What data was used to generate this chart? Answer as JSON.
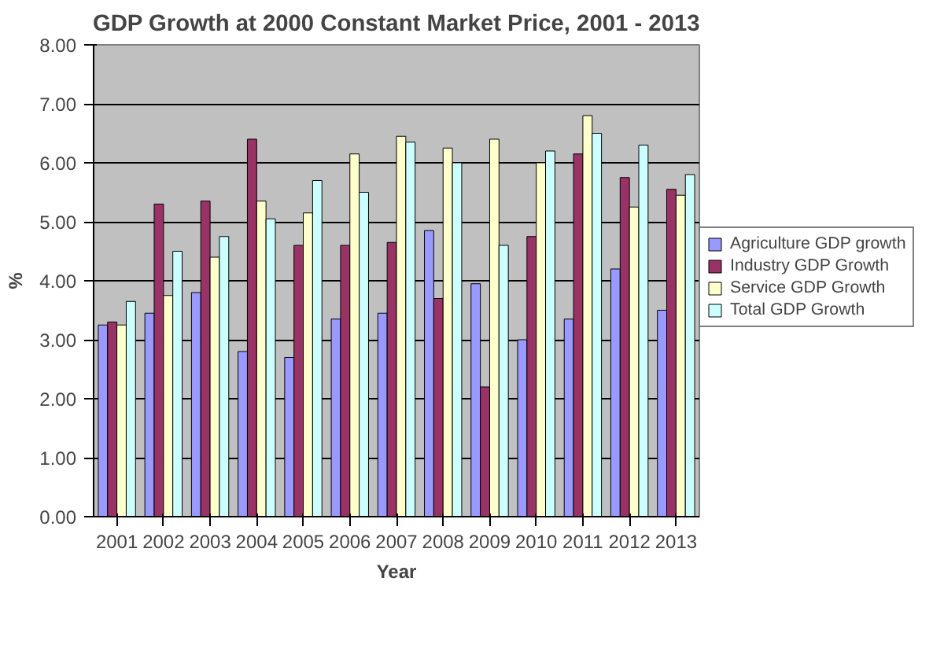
{
  "chart_data": {
    "type": "bar",
    "title": "GDP Growth at 2000 Constant Market Price, 2001 - 2013",
    "xlabel": "Year",
    "ylabel": "%",
    "categories": [
      "2001",
      "2002",
      "2003",
      "2004",
      "2005",
      "2006",
      "2007",
      "2008",
      "2009",
      "2010",
      "2011",
      "2012",
      "2013"
    ],
    "series": [
      {
        "name": "Agriculture GDP growth",
        "color": "#9999ff",
        "values": [
          3.25,
          3.45,
          3.8,
          2.8,
          2.7,
          3.35,
          3.45,
          4.85,
          3.95,
          3.0,
          3.35,
          4.2,
          3.5
        ]
      },
      {
        "name": "Industry GDP Growth",
        "color": "#993366",
        "values": [
          3.3,
          5.3,
          5.35,
          6.4,
          4.6,
          4.6,
          4.65,
          3.7,
          2.2,
          4.75,
          6.15,
          5.75,
          5.55
        ]
      },
      {
        "name": "Service GDP Growth",
        "color": "#ffffcc",
        "values": [
          3.25,
          3.75,
          4.4,
          5.35,
          5.15,
          6.15,
          6.45,
          6.25,
          6.4,
          6.0,
          6.8,
          5.25,
          5.45
        ]
      },
      {
        "name": "Total GDP Growth",
        "color": "#ccffff",
        "values": [
          3.65,
          4.5,
          4.75,
          5.05,
          5.7,
          5.5,
          6.35,
          6.0,
          4.6,
          6.2,
          6.5,
          6.3,
          5.8
        ]
      }
    ],
    "ylim": [
      0,
      8
    ],
    "yticks": [
      {
        "value": 0,
        "label": "0.00"
      },
      {
        "value": 1,
        "label": "1.00"
      },
      {
        "value": 2,
        "label": "2.00"
      },
      {
        "value": 3,
        "label": "3.00"
      },
      {
        "value": 4,
        "label": "4.00"
      },
      {
        "value": 5,
        "label": "5.00"
      },
      {
        "value": 6,
        "label": "6.00"
      },
      {
        "value": 7,
        "label": "7.00"
      },
      {
        "value": 8,
        "label": "8.00"
      }
    ],
    "grid": "y",
    "legend": "right"
  }
}
